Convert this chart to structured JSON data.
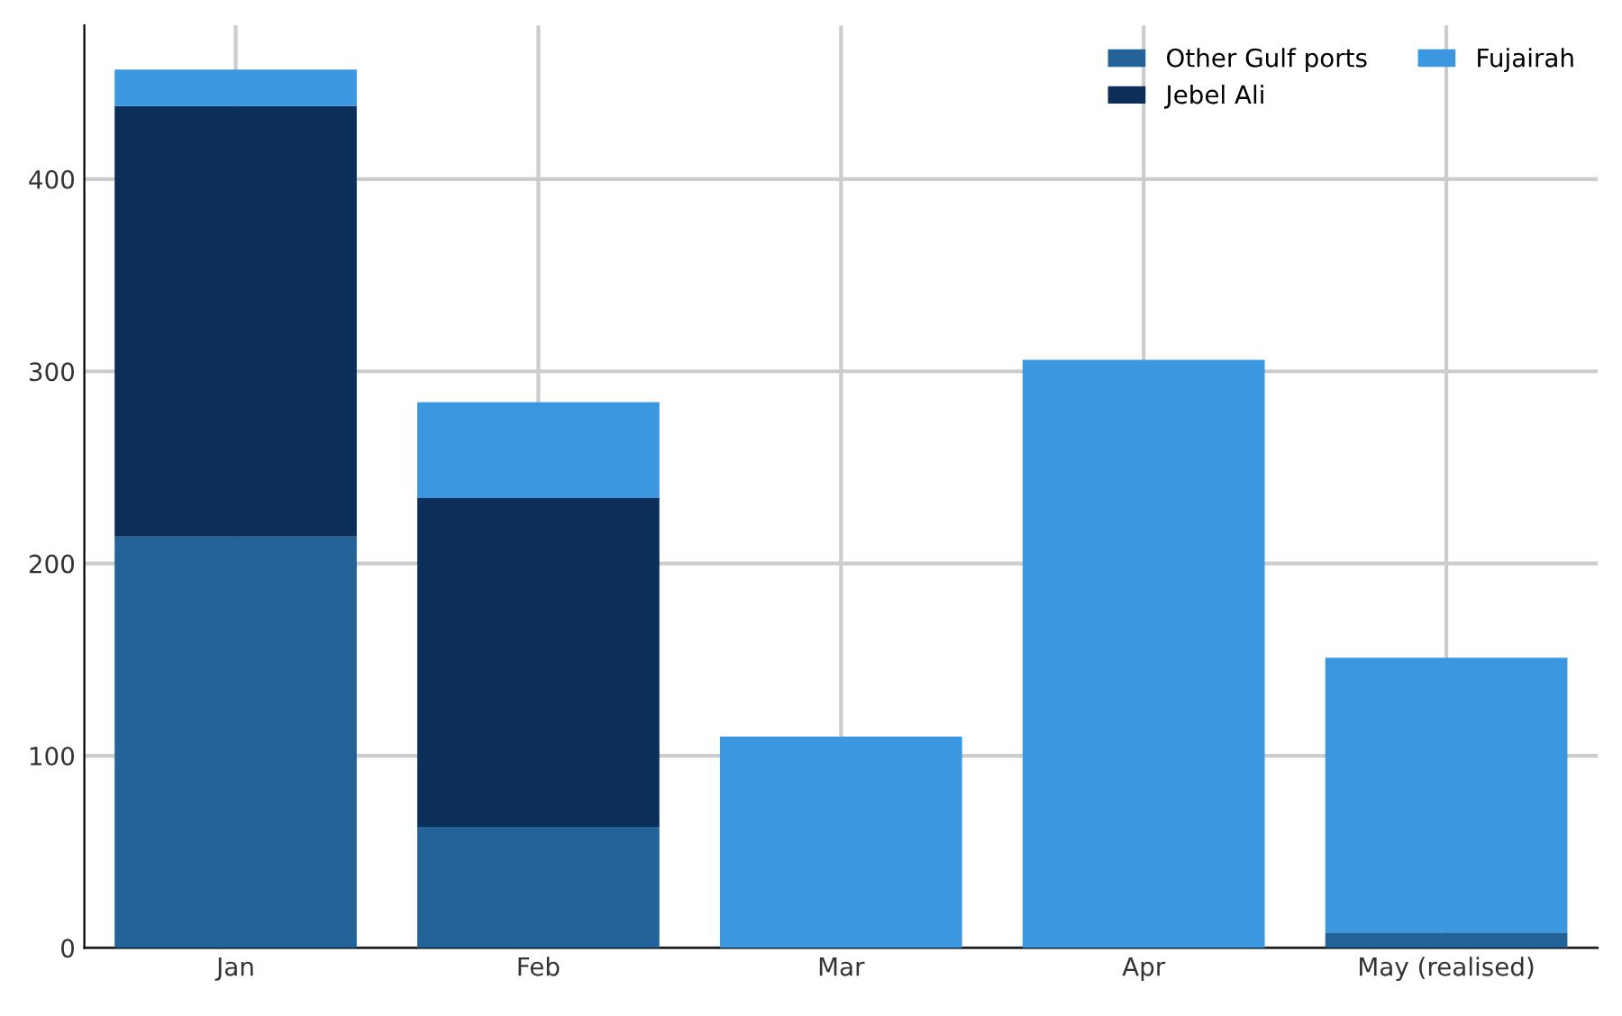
{
  "chart_data": {
    "type": "bar",
    "stacked": true,
    "categories": [
      "Jan",
      "Feb",
      "Mar",
      "Apr",
      "May (realised)"
    ],
    "series": [
      {
        "name": "Other Gulf ports",
        "color": "#236399",
        "values": [
          214,
          63,
          0,
          0,
          8
        ]
      },
      {
        "name": "Jebel Ali",
        "color": "#0b2f58",
        "values": [
          224,
          171,
          0,
          0,
          0
        ]
      },
      {
        "name": "Fujairah",
        "color": "#3b97e0",
        "values": [
          19,
          50,
          110,
          306,
          143
        ]
      }
    ],
    "ylim": [
      0,
      480
    ],
    "yticks": [
      0,
      100,
      200,
      300,
      400
    ],
    "grid": true,
    "legend": "top right"
  }
}
